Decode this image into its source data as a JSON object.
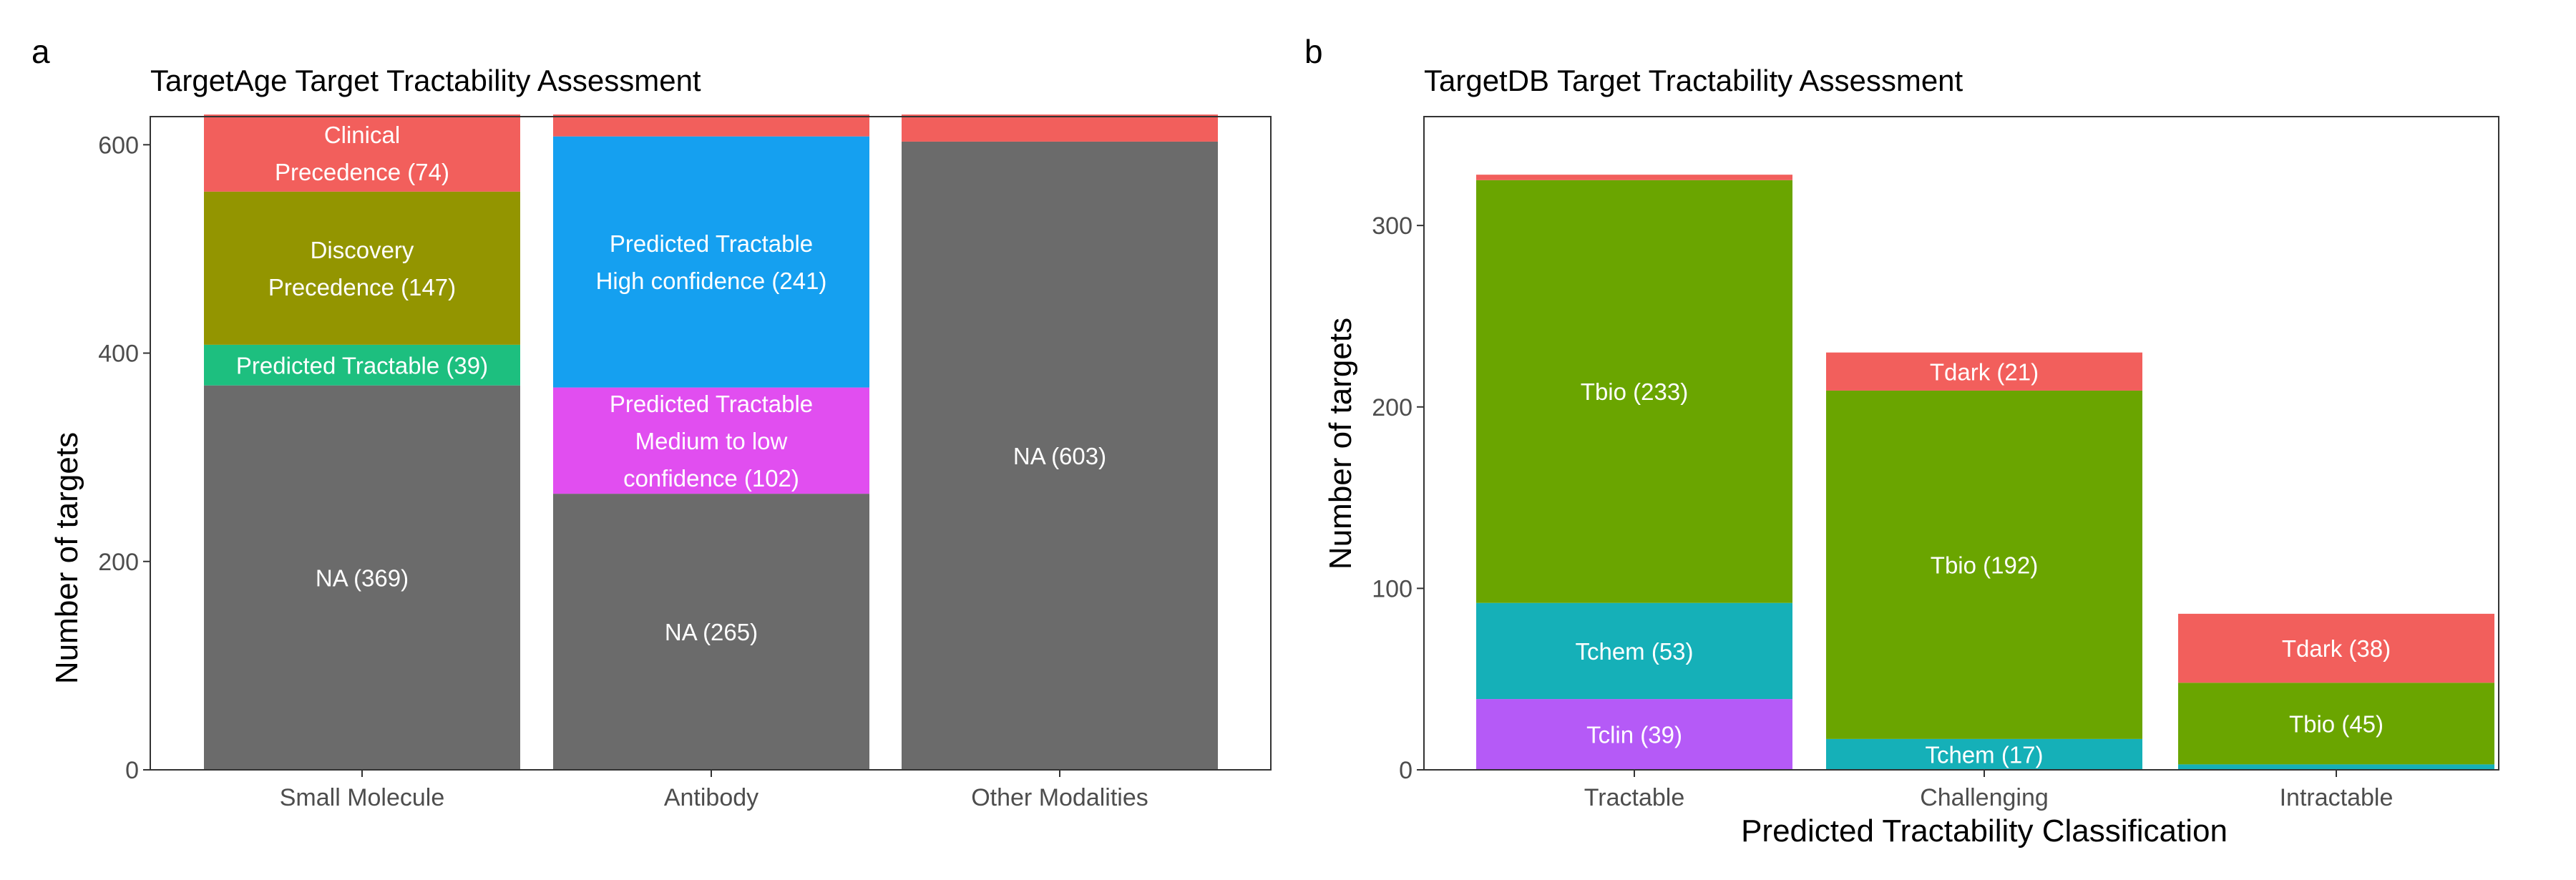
{
  "chart_data": [
    {
      "panel_label": "a",
      "type": "bar",
      "stacked": true,
      "title": "TargetAge Target Tractability Assessment",
      "xlabel": "",
      "ylabel": "Number of targets",
      "ylim": [
        0,
        627
      ],
      "yticks": [
        "0",
        "200",
        "400",
        "600"
      ],
      "ytick_values": [
        0,
        200,
        400,
        600
      ],
      "grid": false,
      "categories": [
        "Small Molecule",
        "Antibody",
        "Other Modalities"
      ],
      "stacks": [
        [
          {
            "value": 369,
            "color": "#6b6b6b",
            "label_lines": [
              "NA (369)"
            ]
          },
          {
            "value": 39,
            "color": "#1dbf7f",
            "label_lines": [
              "Predicted Tractable (39)"
            ]
          },
          {
            "value": 147,
            "color": "#939500",
            "label_lines": [
              "Discovery",
              "Precedence (147)"
            ]
          },
          {
            "value": 74,
            "color": "#f25f5c",
            "label_lines": [
              "Clinical",
              "Precedence (74)"
            ]
          }
        ],
        [
          {
            "value": 265,
            "color": "#6b6b6b",
            "label_lines": [
              "NA (265)"
            ]
          },
          {
            "value": 102,
            "color": "#e14ef0",
            "label_lines": [
              "Predicted Tractable",
              "Medium to low",
              "confidence (102)"
            ]
          },
          {
            "value": 241,
            "color": "#15a0f0",
            "label_lines": [
              "Predicted Tractable",
              "High confidence (241)"
            ]
          },
          {
            "value": 21,
            "color": "#f25f5c",
            "label_lines": []
          }
        ],
        [
          {
            "value": 603,
            "color": "#6b6b6b",
            "label_lines": [
              "NA (603)"
            ]
          },
          {
            "value": 26,
            "color": "#f25f5c",
            "label_lines": []
          }
        ]
      ]
    },
    {
      "panel_label": "b",
      "type": "bar",
      "stacked": true,
      "title": "TargetDB Target Tractability Assessment",
      "xlabel": "Predicted Tractability Classification",
      "ylabel": "Number of targets",
      "ylim": [
        0,
        360
      ],
      "yticks": [
        "0",
        "100",
        "200",
        "300"
      ],
      "ytick_values": [
        0,
        100,
        200,
        300
      ],
      "grid": false,
      "categories": [
        "Tractable",
        "Challenging",
        "Intractable"
      ],
      "stacks": [
        [
          {
            "value": 39,
            "color": "#b55af7",
            "label_lines": [
              "Tclin (39)"
            ]
          },
          {
            "value": 53,
            "color": "#15b0b8",
            "label_lines": [
              "Tchem (53)"
            ]
          },
          {
            "value": 233,
            "color": "#6aa500",
            "label_lines": [
              "Tbio (233)"
            ]
          },
          {
            "value": 3,
            "color": "#f25f5c",
            "label_lines": []
          }
        ],
        [
          {
            "value": 17,
            "color": "#15b0b8",
            "label_lines": [
              "Tchem (17)"
            ]
          },
          {
            "value": 192,
            "color": "#6aa500",
            "label_lines": [
              "Tbio (192)"
            ]
          },
          {
            "value": 21,
            "color": "#f25f5c",
            "label_lines": [
              "Tdark (21)"
            ]
          }
        ],
        [
          {
            "value": 3,
            "color": "#15b0b8",
            "label_lines": []
          },
          {
            "value": 45,
            "color": "#6aa500",
            "label_lines": [
              "Tbio (45)"
            ]
          },
          {
            "value": 38,
            "color": "#f25f5c",
            "label_lines": [
              "Tdark (38)"
            ]
          }
        ]
      ]
    }
  ]
}
